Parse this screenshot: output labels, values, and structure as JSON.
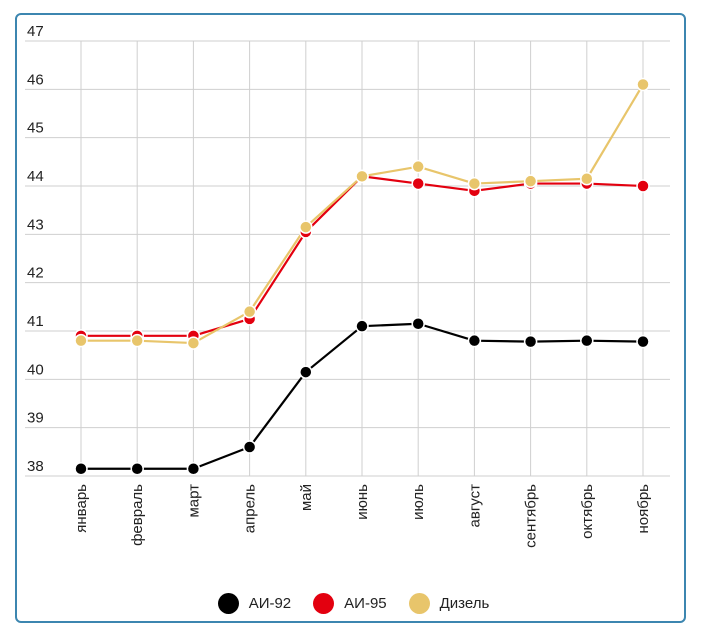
{
  "chart_data": {
    "type": "line",
    "title": "",
    "xlabel": "",
    "ylabel": "",
    "ylim": [
      38,
      47
    ],
    "y_ticks": [
      "38",
      "39",
      "40",
      "41",
      "42",
      "43",
      "44",
      "45",
      "46",
      "47"
    ],
    "categories": [
      "январь",
      "февраль",
      "март",
      "апрель",
      "май",
      "июнь",
      "июль",
      "август",
      "сентябрь",
      "октябрь",
      "ноябрь"
    ],
    "grid": true,
    "legend_position": "bottom",
    "series": [
      {
        "name": "АИ-92",
        "color": "#000000",
        "values": [
          38.15,
          38.15,
          38.15,
          38.6,
          40.15,
          41.1,
          41.15,
          40.8,
          40.78,
          40.8,
          40.78
        ]
      },
      {
        "name": "АИ-95",
        "color": "#e3000f",
        "values": [
          40.9,
          40.9,
          40.9,
          41.25,
          43.05,
          44.2,
          44.05,
          43.9,
          44.05,
          44.05,
          44.0
        ]
      },
      {
        "name": "Дизель",
        "color": "#e8c56b",
        "values": [
          40.8,
          40.8,
          40.75,
          41.4,
          43.15,
          44.2,
          44.4,
          44.05,
          44.1,
          44.15,
          46.1
        ]
      }
    ]
  }
}
